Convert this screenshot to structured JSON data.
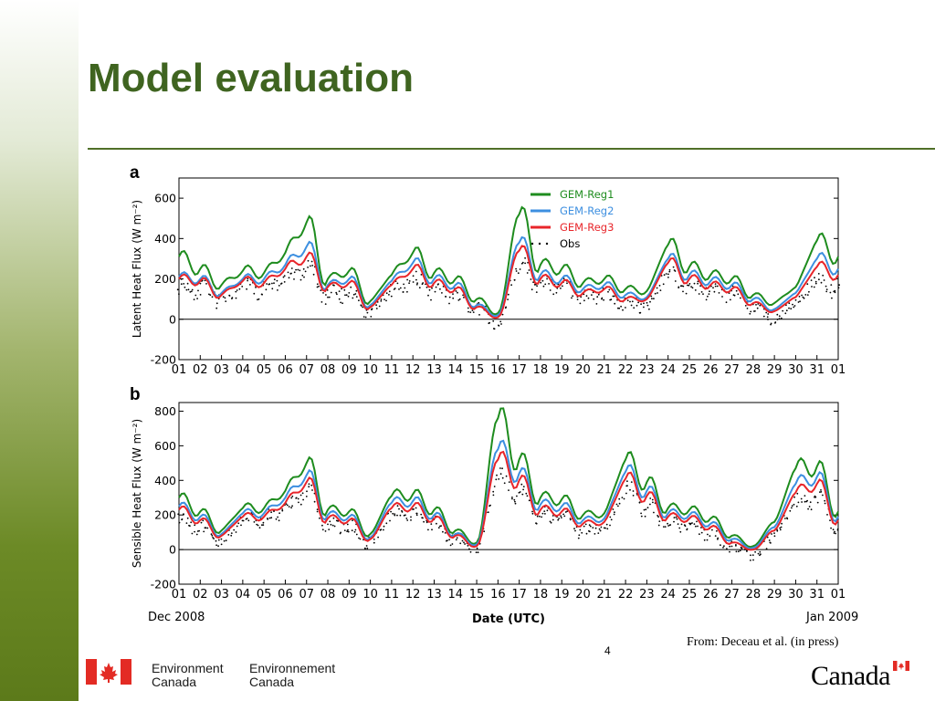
{
  "slide": {
    "title": "Model evaluation",
    "citation": "From: Deceau et al. (in press)",
    "page_number": "4"
  },
  "footer": {
    "department_en_line1": "Environment",
    "department_en_line2": "Canada",
    "department_fr_line1": "Environnement",
    "department_fr_line2": "Canada",
    "wordmark": "Canada",
    "flag_color": "#e32b24"
  },
  "colors": {
    "title": "#3f6420",
    "rule": "#4f6f28",
    "GEM-Reg1": "#1e8c1e",
    "GEM-Reg2": "#3d8fe0",
    "GEM-Reg3": "#e8252a",
    "Obs": "#000000"
  },
  "chart_data": [
    {
      "panel": "a",
      "type": "line",
      "ylabel": "Latent Heat Flux (W m⁻²)",
      "xlabel": "",
      "ylim": [
        -200,
        700
      ],
      "yticks": [
        -200,
        0,
        200,
        400,
        600
      ],
      "x_ticks": [
        "01",
        "02",
        "03",
        "04",
        "05",
        "06",
        "07",
        "08",
        "09",
        "10",
        "11",
        "12",
        "13",
        "14",
        "15",
        "16",
        "17",
        "18",
        "19",
        "20",
        "21",
        "22",
        "23",
        "24",
        "25",
        "26",
        "27",
        "28",
        "29",
        "30",
        "31",
        "01"
      ],
      "grid": false,
      "zero_line": true,
      "legend": {
        "placement": "upper-middle",
        "entries": [
          "GEM-Reg1",
          "GEM-Reg2",
          "GEM-Reg3",
          "Obs"
        ]
      },
      "series": [
        {
          "name": "GEM-Reg1",
          "values": [
            310,
            250,
            170,
            240,
            230,
            330,
            480,
            200,
            240,
            90,
            220,
            330,
            230,
            200,
            100,
            30,
            520,
            270,
            250,
            180,
            200,
            150,
            140,
            370,
            260,
            220,
            200,
            120,
            80,
            160,
            390,
            310
          ]
        },
        {
          "name": "GEM-Reg2",
          "values": [
            210,
            200,
            130,
            200,
            200,
            270,
            360,
            170,
            200,
            70,
            190,
            280,
            200,
            170,
            70,
            20,
            380,
            220,
            200,
            150,
            170,
            120,
            110,
            300,
            220,
            190,
            170,
            100,
            50,
            130,
            300,
            250
          ]
        },
        {
          "name": "GEM-Reg3",
          "values": [
            200,
            190,
            120,
            190,
            180,
            250,
            310,
            160,
            180,
            60,
            170,
            250,
            180,
            150,
            60,
            10,
            340,
            200,
            180,
            130,
            150,
            100,
            100,
            280,
            200,
            170,
            150,
            80,
            40,
            110,
            260,
            220
          ]
        },
        {
          "name": "Obs",
          "values": [
            160,
            150,
            100,
            160,
            150,
            200,
            250,
            120,
            130,
            40,
            140,
            190,
            140,
            120,
            50,
            -20,
            260,
            170,
            160,
            110,
            120,
            80,
            70,
            220,
            160,
            140,
            130,
            60,
            10,
            90,
            190,
            150
          ]
        }
      ]
    },
    {
      "panel": "b",
      "type": "line",
      "ylabel": "Sensible Heat Flux (W m⁻²)",
      "xlabel": "Date (UTC)",
      "x_start_label": "Dec 2008",
      "x_end_label": "Jan 2009",
      "ylim": [
        -200,
        850
      ],
      "yticks": [
        -200,
        0,
        200,
        400,
        600,
        800
      ],
      "x_ticks": [
        "01",
        "02",
        "03",
        "04",
        "05",
        "06",
        "07",
        "08",
        "09",
        "10",
        "11",
        "12",
        "13",
        "14",
        "15",
        "16",
        "17",
        "18",
        "19",
        "20",
        "21",
        "22",
        "23",
        "24",
        "25",
        "26",
        "27",
        "28",
        "29",
        "30",
        "31",
        "01"
      ],
      "grid": false,
      "zero_line": true,
      "series": [
        {
          "name": "GEM-Reg1",
          "values": [
            300,
            220,
            110,
            240,
            240,
            340,
            500,
            230,
            220,
            90,
            310,
            320,
            230,
            110,
            40,
            760,
            520,
            300,
            290,
            200,
            210,
            520,
            390,
            240,
            230,
            180,
            80,
            20,
            160,
            470,
            480,
            220
          ]
        },
        {
          "name": "GEM-Reg2",
          "values": [
            250,
            190,
            90,
            210,
            210,
            300,
            430,
            200,
            190,
            70,
            270,
            280,
            200,
            90,
            30,
            580,
            440,
            260,
            250,
            170,
            180,
            450,
            340,
            210,
            200,
            150,
            60,
            10,
            130,
            380,
            420,
            190
          ]
        },
        {
          "name": "GEM-Reg3",
          "values": [
            230,
            170,
            80,
            190,
            190,
            270,
            390,
            180,
            170,
            60,
            240,
            250,
            180,
            80,
            20,
            520,
            400,
            230,
            220,
            150,
            160,
            410,
            310,
            190,
            180,
            130,
            40,
            0,
            110,
            330,
            380,
            170
          ]
        },
        {
          "name": "Obs",
          "values": [
            170,
            130,
            60,
            170,
            170,
            230,
            330,
            150,
            130,
            40,
            200,
            210,
            150,
            60,
            0,
            410,
            320,
            200,
            180,
            110,
            120,
            340,
            250,
            150,
            140,
            100,
            20,
            -30,
            70,
            270,
            300,
            130
          ]
        }
      ]
    }
  ]
}
